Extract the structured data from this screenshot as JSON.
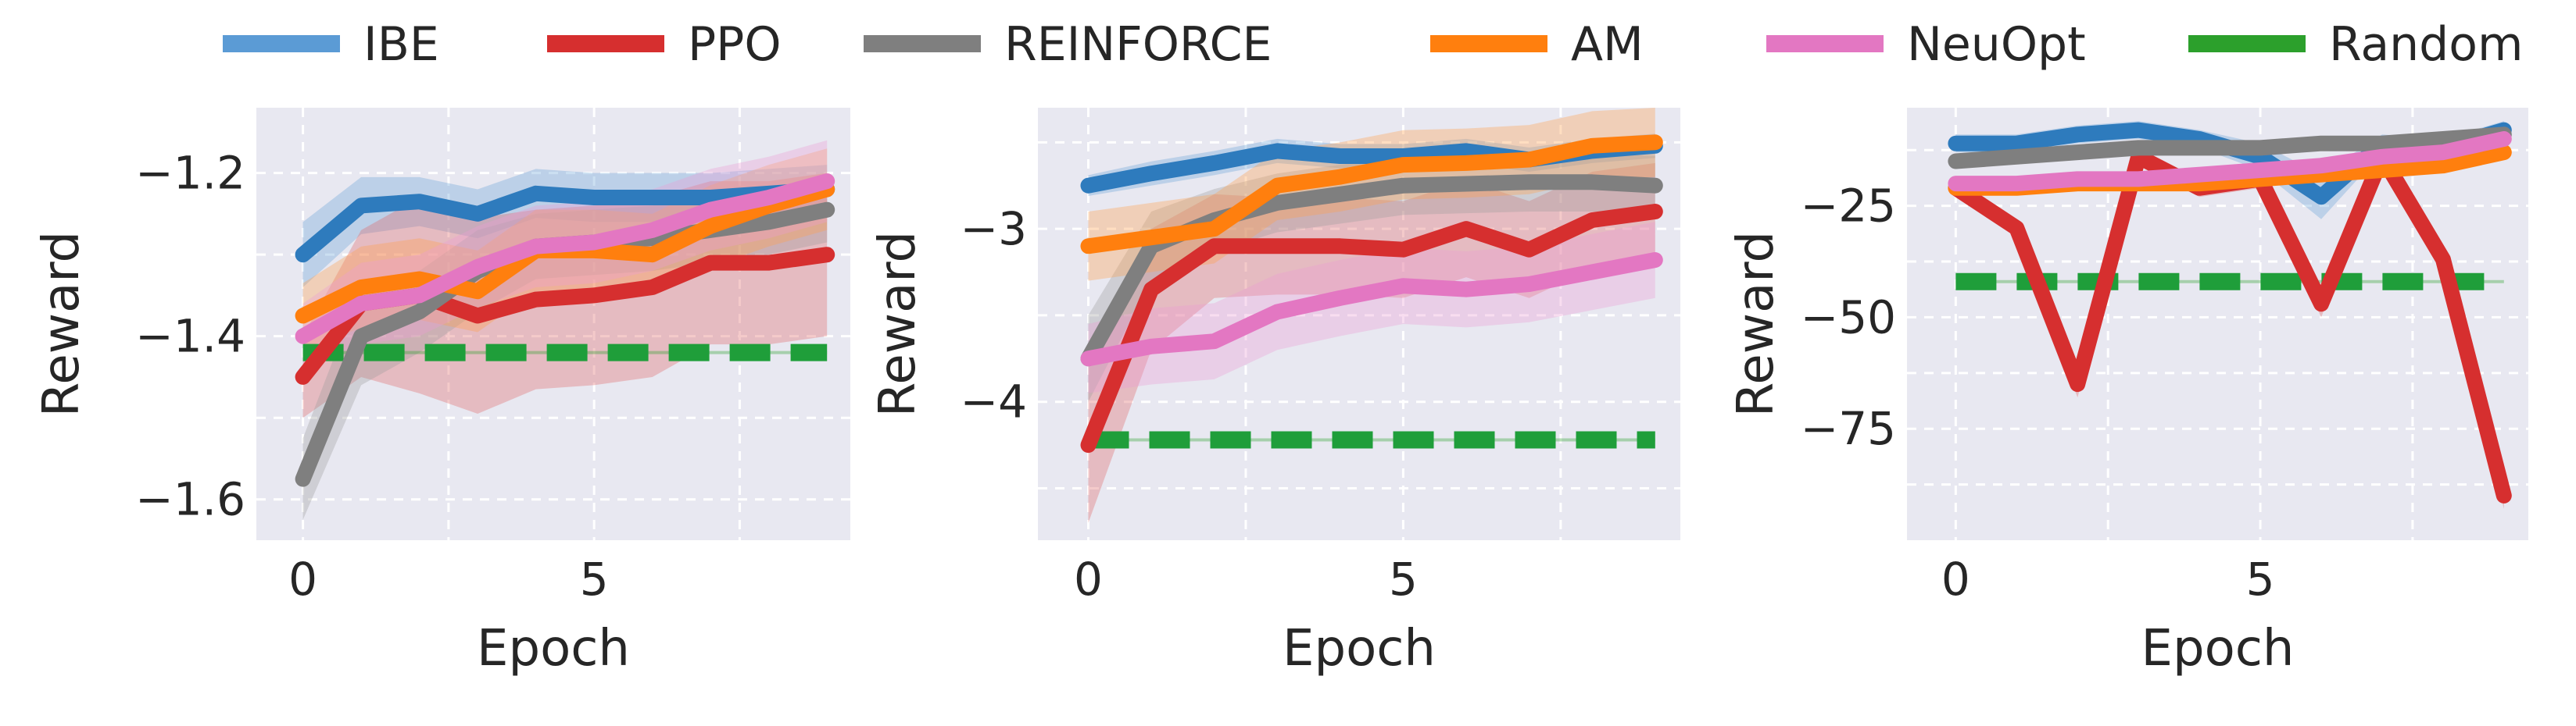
{
  "legend": {
    "placement": "top-center",
    "items": [
      {
        "name": "IBE",
        "color": "#5b9bd5",
        "dashed": false
      },
      {
        "name": "PPO",
        "color": "#d62f2f",
        "dashed": false
      },
      {
        "name": "REINFORCE",
        "color": "#7f7f7f",
        "dashed": false
      },
      {
        "name": "AM",
        "color": "#ff7f0e",
        "dashed": false
      },
      {
        "name": "NeuOpt",
        "color": "#e377c2",
        "dashed": false
      },
      {
        "name": "Random",
        "color": "#2ca02c",
        "dashed": true
      }
    ]
  },
  "chart_data": [
    {
      "type": "line",
      "xlabel": "Epoch",
      "ylabel": "Reward",
      "xlim": [
        -0.8,
        9.4
      ],
      "ylim": [
        -1.65,
        -1.12
      ],
      "xticks": [
        0,
        5
      ],
      "yticks": [
        -1.6,
        -1.4,
        -1.2
      ],
      "grid": true,
      "x": [
        0,
        1,
        2,
        3,
        4,
        5,
        6,
        7,
        8,
        9
      ],
      "series": [
        {
          "name": "IBE",
          "color": "#2e7bbd",
          "band_color": "#6aa4d8",
          "values": [
            -1.3,
            -1.24,
            -1.235,
            -1.25,
            -1.225,
            -1.23,
            -1.23,
            -1.23,
            -1.225,
            -1.22
          ],
          "spread": [
            0.04,
            0.035,
            0.03,
            0.03,
            0.03,
            0.03,
            0.03,
            0.03,
            0.03,
            0.03
          ]
        },
        {
          "name": "PPO",
          "color": "#d62f2f",
          "band_color": "#e06666",
          "values": [
            -1.45,
            -1.36,
            -1.35,
            -1.375,
            -1.355,
            -1.35,
            -1.34,
            -1.31,
            -1.31,
            -1.3
          ],
          "spread": [
            0.05,
            0.09,
            0.12,
            0.12,
            0.11,
            0.11,
            0.11,
            0.1,
            0.1,
            0.1
          ]
        },
        {
          "name": "REINFORCE",
          "color": "#7f7f7f",
          "band_color": "#9f9f9f",
          "values": [
            -1.575,
            -1.4,
            -1.37,
            -1.32,
            -1.29,
            -1.285,
            -1.28,
            -1.27,
            -1.26,
            -1.245
          ],
          "spread": [
            0.05,
            0.06,
            0.05,
            0.05,
            0.04,
            0.04,
            0.04,
            0.04,
            0.04,
            0.04
          ]
        },
        {
          "name": "AM",
          "color": "#ff7f0e",
          "band_color": "#ffa04d",
          "values": [
            -1.375,
            -1.34,
            -1.33,
            -1.345,
            -1.295,
            -1.295,
            -1.3,
            -1.265,
            -1.24,
            -1.22
          ],
          "spread": [
            0.04,
            0.05,
            0.05,
            0.05,
            0.05,
            0.05,
            0.05,
            0.05,
            0.05,
            0.05
          ]
        },
        {
          "name": "NeuOpt",
          "color": "#e377c2",
          "band_color": "#ec9ed3",
          "values": [
            -1.4,
            -1.36,
            -1.35,
            -1.315,
            -1.29,
            -1.285,
            -1.27,
            -1.245,
            -1.23,
            -1.21
          ],
          "spread": [
            0.04,
            0.05,
            0.05,
            0.05,
            0.05,
            0.05,
            0.05,
            0.05,
            0.05,
            0.05
          ]
        },
        {
          "name": "Random",
          "color": "#1f9e3a",
          "dashed": true,
          "values": [
            -1.42,
            -1.42,
            -1.42,
            -1.42,
            -1.42,
            -1.42,
            -1.42,
            -1.42,
            -1.42,
            -1.42
          ]
        }
      ]
    },
    {
      "type": "line",
      "xlabel": "Epoch",
      "ylabel": "Reward",
      "xlim": [
        -0.8,
        9.4
      ],
      "ylim": [
        -4.8,
        -2.3
      ],
      "xticks": [
        0,
        5
      ],
      "yticks": [
        -4,
        -3
      ],
      "grid": true,
      "x": [
        0,
        1,
        2,
        3,
        4,
        5,
        6,
        7,
        8,
        9
      ],
      "series": [
        {
          "name": "IBE",
          "color": "#2e7bbd",
          "band_color": "#6aa4d8",
          "values": [
            -2.75,
            -2.68,
            -2.62,
            -2.55,
            -2.58,
            -2.58,
            -2.55,
            -2.6,
            -2.55,
            -2.52
          ],
          "spread": [
            0.06,
            0.07,
            0.07,
            0.07,
            0.07,
            0.07,
            0.07,
            0.07,
            0.07,
            0.07
          ]
        },
        {
          "name": "PPO",
          "color": "#d62f2f",
          "band_color": "#e06666",
          "values": [
            -4.25,
            -3.35,
            -3.1,
            -3.1,
            -3.1,
            -3.12,
            -3.0,
            -3.12,
            -2.95,
            -2.9
          ],
          "spread": [
            0.45,
            0.35,
            0.3,
            0.28,
            0.28,
            0.28,
            0.28,
            0.28,
            0.28,
            0.28
          ]
        },
        {
          "name": "REINFORCE",
          "color": "#7f7f7f",
          "band_color": "#9f9f9f",
          "values": [
            -3.75,
            -3.1,
            -2.95,
            -2.85,
            -2.8,
            -2.75,
            -2.74,
            -2.73,
            -2.73,
            -2.75
          ],
          "spread": [
            0.25,
            0.2,
            0.18,
            0.17,
            0.17,
            0.17,
            0.17,
            0.17,
            0.17,
            0.17
          ]
        },
        {
          "name": "AM",
          "color": "#ff7f0e",
          "band_color": "#ffa04d",
          "values": [
            -3.1,
            -3.05,
            -3.0,
            -2.75,
            -2.7,
            -2.63,
            -2.62,
            -2.6,
            -2.52,
            -2.5
          ],
          "spread": [
            0.2,
            0.2,
            0.2,
            0.2,
            0.2,
            0.2,
            0.2,
            0.2,
            0.2,
            0.2
          ]
        },
        {
          "name": "NeuOpt",
          "color": "#e377c2",
          "band_color": "#ec9ed3",
          "values": [
            -3.75,
            -3.68,
            -3.65,
            -3.48,
            -3.4,
            -3.33,
            -3.35,
            -3.32,
            -3.25,
            -3.18
          ],
          "spread": [
            0.2,
            0.22,
            0.22,
            0.22,
            0.22,
            0.22,
            0.22,
            0.22,
            0.22,
            0.22
          ]
        },
        {
          "name": "Random",
          "color": "#1f9e3a",
          "dashed": true,
          "values": [
            -4.22,
            -4.22,
            -4.22,
            -4.22,
            -4.22,
            -4.22,
            -4.22,
            -4.22,
            -4.22,
            -4.22
          ]
        }
      ]
    },
    {
      "type": "line",
      "xlabel": "Epoch",
      "ylabel": "Reward",
      "xlim": [
        -0.8,
        9.4
      ],
      "ylim": [
        -100,
        -3
      ],
      "xticks": [
        0,
        5
      ],
      "yticks": [
        -75,
        -50,
        -25
      ],
      "grid": true,
      "x": [
        0,
        1,
        2,
        3,
        4,
        5,
        6,
        7,
        8,
        9
      ],
      "series": [
        {
          "name": "IBE",
          "color": "#2e7bbd",
          "band_color": "#6aa4d8",
          "values": [
            -11,
            -11,
            -9,
            -8,
            -10,
            -14,
            -23,
            -11,
            -12,
            -8
          ],
          "spread": [
            2,
            2,
            2,
            2,
            2,
            3,
            5,
            2,
            2,
            2
          ]
        },
        {
          "name": "PPO",
          "color": "#d62f2f",
          "band_color": "#e06666",
          "values": [
            -21,
            -30,
            -65,
            -14,
            -21,
            -19,
            -47,
            -14,
            -37,
            -90
          ],
          "spread": [
            1,
            2,
            3,
            2,
            2,
            2,
            3,
            2,
            3,
            3
          ]
        },
        {
          "name": "REINFORCE",
          "color": "#7f7f7f",
          "band_color": "#9f9f9f",
          "values": [
            -15,
            -14,
            -13,
            -12,
            -12,
            -12,
            -11,
            -11,
            -10,
            -9
          ],
          "spread": [
            1.5,
            1.5,
            1.5,
            1.5,
            1.5,
            1.5,
            1.5,
            1.5,
            1.5,
            1.5
          ]
        },
        {
          "name": "AM",
          "color": "#ff7f0e",
          "band_color": "#ffa04d",
          "values": [
            -21,
            -21,
            -20,
            -20,
            -20,
            -19,
            -18,
            -17,
            -16,
            -13
          ],
          "spread": [
            1.5,
            1.5,
            1.5,
            1.5,
            1.5,
            1.5,
            1.5,
            1.5,
            1.5,
            1.5
          ]
        },
        {
          "name": "NeuOpt",
          "color": "#e377c2",
          "band_color": "#ec9ed3",
          "values": [
            -20,
            -20,
            -19,
            -19,
            -18,
            -17,
            -16,
            -14,
            -13,
            -10
          ],
          "spread": [
            1.5,
            1.5,
            1.5,
            1.5,
            1.5,
            1.5,
            1.5,
            1.5,
            1.5,
            1.5
          ]
        },
        {
          "name": "Random",
          "color": "#1f9e3a",
          "dashed": true,
          "values": [
            -42,
            -42,
            -42,
            -42,
            -42,
            -42,
            -42,
            -42,
            -42,
            -42
          ]
        }
      ]
    }
  ]
}
